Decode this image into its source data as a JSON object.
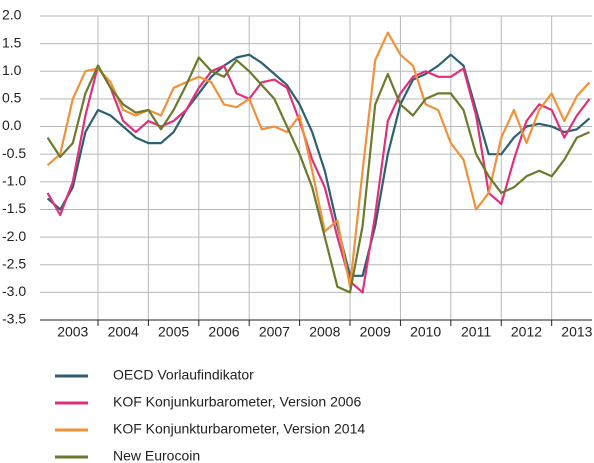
{
  "chart_data": {
    "type": "line",
    "x": [
      2003.0,
      2003.25,
      2003.5,
      2003.75,
      2004.0,
      2004.25,
      2004.5,
      2004.75,
      2005.0,
      2005.25,
      2005.5,
      2005.75,
      2006.0,
      2006.25,
      2006.5,
      2006.75,
      2007.0,
      2007.25,
      2007.5,
      2007.75,
      2008.0,
      2008.25,
      2008.5,
      2008.75,
      2009.0,
      2009.25,
      2009.5,
      2009.75,
      2010.0,
      2010.25,
      2010.5,
      2010.75,
      2011.0,
      2011.25,
      2011.5,
      2011.75,
      2012.0,
      2012.25,
      2012.5,
      2012.75,
      2013.0,
      2013.25,
      2013.5,
      2013.75
    ],
    "xlim": [
      2002.85,
      2013.8
    ],
    "xticks": [
      {
        "value": 2003.5,
        "label": "2003"
      },
      {
        "value": 2004.5,
        "label": "2004"
      },
      {
        "value": 2005.5,
        "label": "2005"
      },
      {
        "value": 2006.5,
        "label": "2006"
      },
      {
        "value": 2007.5,
        "label": "2007"
      },
      {
        "value": 2008.5,
        "label": "2008"
      },
      {
        "value": 2009.5,
        "label": "2009"
      },
      {
        "value": 2010.5,
        "label": "2010"
      },
      {
        "value": 2011.5,
        "label": "2011"
      },
      {
        "value": 2012.5,
        "label": "2012"
      },
      {
        "value": 2013.5,
        "label": "2013"
      }
    ],
    "xgrid": [
      2004,
      2005,
      2006,
      2007,
      2008,
      2009,
      2010,
      2011,
      2012,
      2013
    ],
    "ylim": [
      -3.5,
      2.0
    ],
    "yticks": [
      {
        "value": 2.0,
        "label": "2.0"
      },
      1.5,
      {
        "value": 1.0,
        "label": "1.0"
      },
      0.5,
      {
        "value": 0.0,
        "label": "0.0"
      },
      -0.5,
      {
        "value": -1.0,
        "label": "-1.0"
      },
      -1.5,
      {
        "value": -2.0,
        "label": "-2.0"
      },
      -2.5,
      {
        "value": -3.0,
        "label": "-3.0"
      },
      -3.5
    ],
    "grid": true,
    "legend": "bottom",
    "series": [
      {
        "name": "OECD Vorlaufindikator",
        "color": "#2b6170",
        "values": [
          -1.3,
          -1.5,
          -1.1,
          -0.1,
          0.3,
          0.2,
          0.0,
          -0.2,
          -0.3,
          -0.3,
          -0.1,
          0.3,
          0.6,
          0.9,
          1.1,
          1.25,
          1.3,
          1.15,
          0.95,
          0.75,
          0.4,
          -0.1,
          -0.8,
          -1.8,
          -2.7,
          -2.7,
          -1.8,
          -0.5,
          0.4,
          0.85,
          0.95,
          1.1,
          1.3,
          1.1,
          0.3,
          -0.5,
          -0.5,
          -0.2,
          0.0,
          0.05,
          0.0,
          -0.1,
          -0.05,
          0.15
        ]
      },
      {
        "name": "KOF Konjunkurbarometer, Version 2006",
        "color": "#e0307a",
        "values": [
          -1.2,
          -1.6,
          -1.0,
          0.2,
          1.1,
          0.7,
          0.1,
          -0.1,
          0.1,
          0.0,
          0.1,
          0.3,
          0.7,
          1.0,
          1.1,
          0.6,
          0.5,
          0.8,
          0.85,
          0.7,
          0.1,
          -0.6,
          -1.1,
          -2.0,
          -2.8,
          -3.0,
          -1.6,
          0.1,
          0.6,
          0.9,
          1.0,
          0.9,
          0.9,
          1.05,
          0.2,
          -1.2,
          -1.4,
          -0.6,
          0.1,
          0.4,
          0.3,
          -0.2,
          0.2,
          0.5
        ]
      },
      {
        "name": "KOF Konjunkturbarometer, Version 2014",
        "color": "#f0923a",
        "values": [
          -0.7,
          -0.5,
          0.5,
          1.0,
          1.05,
          0.8,
          0.3,
          0.2,
          0.3,
          0.2,
          0.7,
          0.8,
          0.9,
          0.8,
          0.4,
          0.35,
          0.5,
          -0.05,
          0.0,
          -0.1,
          0.2,
          -0.8,
          -1.9,
          -1.7,
          -2.9,
          -0.8,
          1.2,
          1.7,
          1.3,
          1.1,
          0.4,
          0.3,
          -0.3,
          -0.6,
          -1.5,
          -1.2,
          -0.2,
          0.3,
          -0.3,
          0.3,
          0.6,
          0.1,
          0.55,
          0.8
        ]
      },
      {
        "name": "New Eurocoin",
        "color": "#6b7a2c",
        "values": [
          -0.2,
          -0.55,
          -0.3,
          0.6,
          1.1,
          0.7,
          0.4,
          0.25,
          0.3,
          -0.05,
          0.3,
          0.75,
          1.25,
          1.0,
          0.9,
          1.2,
          1.0,
          0.75,
          0.5,
          0.0,
          -0.5,
          -1.1,
          -2.0,
          -2.9,
          -3.0,
          -1.8,
          0.4,
          0.95,
          0.4,
          0.2,
          0.5,
          0.6,
          0.6,
          0.3,
          -0.5,
          -0.9,
          -1.2,
          -1.1,
          -0.9,
          -0.8,
          -0.9,
          -0.6,
          -0.2,
          -0.1
        ]
      }
    ]
  }
}
